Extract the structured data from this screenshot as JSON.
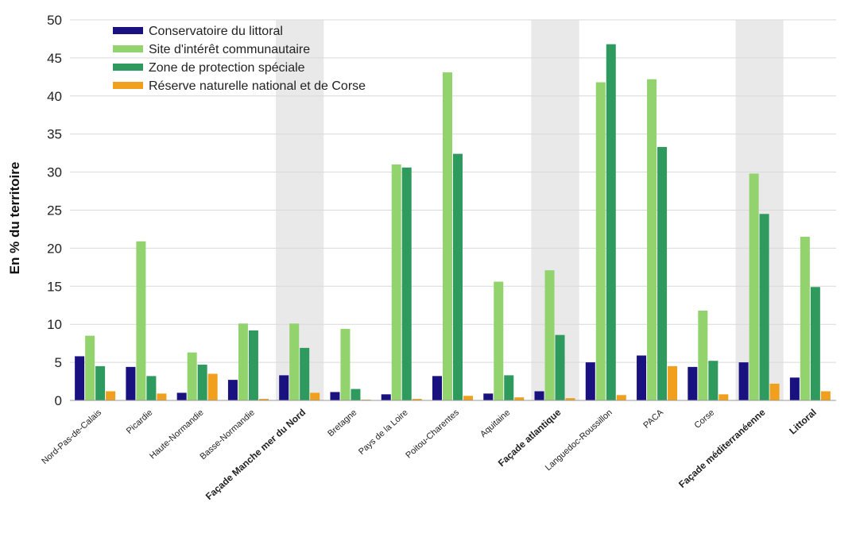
{
  "chart_data": {
    "type": "bar",
    "title": "",
    "xlabel": "",
    "ylabel": "En % du territoire",
    "ylim": [
      0,
      50
    ],
    "yticks": [
      0,
      5,
      10,
      15,
      20,
      25,
      30,
      35,
      40,
      45,
      50
    ],
    "grid": true,
    "legend_position": "top-left",
    "categories": [
      "Nord-Pas-de-Calais",
      "Picardie",
      "Haute-Normandie",
      "Basse-Normandie",
      "Façade Manche mer du Nord",
      "Bretagne",
      "Pays de la Loire",
      "Poitou-Charentes",
      "Aquitaine",
      "Façade atlantique",
      "Languedoc-Roussillon",
      "PACA",
      "Corse",
      "Façade méditerranéenne",
      "Littoral"
    ],
    "bold_categories": [
      "Façade Manche mer du Nord",
      "Façade atlantique",
      "Façade méditerranéenne",
      "Littoral"
    ],
    "shaded_categories": [
      "Façade Manche mer du Nord",
      "Façade atlantique",
      "Façade méditerranéenne"
    ],
    "series": [
      {
        "name": "Conservatoire du littoral",
        "color": "#1a1180",
        "values": [
          5.8,
          4.4,
          1.0,
          2.7,
          3.3,
          1.1,
          0.8,
          3.2,
          0.9,
          1.2,
          5.0,
          5.9,
          4.4,
          5.0,
          3.0
        ]
      },
      {
        "name": "Site d'intérêt communautaire",
        "color": "#92d36e",
        "values": [
          8.5,
          20.9,
          6.3,
          10.1,
          10.1,
          9.4,
          31.0,
          43.1,
          15.6,
          17.1,
          41.8,
          42.2,
          11.8,
          29.8,
          21.5
        ]
      },
      {
        "name": "Zone de protection spéciale",
        "color": "#2e9a5e",
        "values": [
          4.5,
          3.2,
          4.7,
          9.2,
          6.9,
          1.5,
          30.6,
          32.4,
          3.3,
          8.6,
          46.8,
          33.3,
          5.2,
          24.5,
          14.9
        ]
      },
      {
        "name": "Réserve naturelle national et de Corse",
        "color": "#f0a01c",
        "values": [
          1.2,
          0.9,
          3.5,
          0.2,
          1.0,
          0.1,
          0.2,
          0.6,
          0.4,
          0.3,
          0.7,
          4.5,
          0.8,
          2.2,
          1.2
        ]
      }
    ]
  }
}
